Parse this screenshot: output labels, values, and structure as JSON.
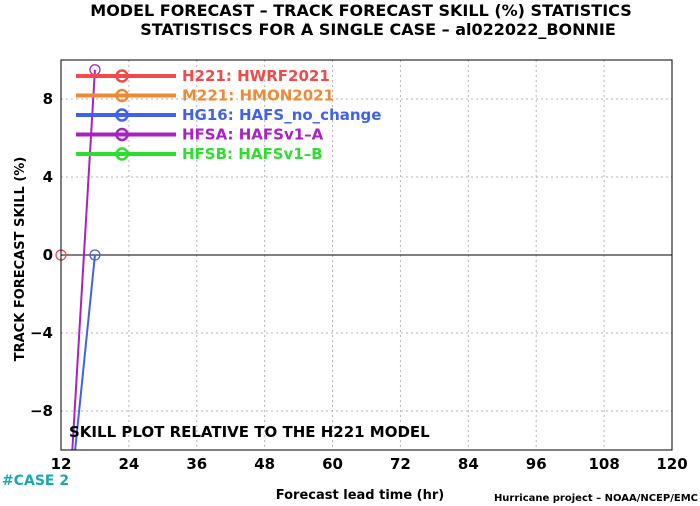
{
  "chart_data": {
    "type": "line",
    "title": "MODEL FORECAST – TRACK FORECAST SKILL (%) STATISTICS",
    "subtitle": "STATISTISCS FOR A SINGLE CASE – al022022_BONNIE",
    "xlabel": "Forecast lead time (hr)",
    "ylabel": "TRACK FORECAST SKILL (%)",
    "xlim": [
      12,
      120
    ],
    "ylim": [
      -10,
      10
    ],
    "xticks": [
      "12",
      "24",
      "36",
      "48",
      "60",
      "72",
      "84",
      "96",
      "108",
      "120"
    ],
    "yticks": [
      "8",
      "4",
      "0",
      "−4",
      "−8"
    ],
    "grid": true,
    "legend_position": "top-left",
    "annotation": "SKILL PLOT RELATIVE TO THE H221 MODEL",
    "case_label": "#CASE  2",
    "credit": "Hurricane project – NOAA/NCEP/EMC",
    "series": [
      {
        "code": "H221",
        "name": "HWRF2021",
        "color": "#f24a4a",
        "points": [
          [
            12,
            0
          ]
        ]
      },
      {
        "code": "M221",
        "name": "HMON2021",
        "color": "#ef8a34",
        "points": []
      },
      {
        "code": "HG16",
        "name": "HAFS_no_change",
        "color": "#3f62e8",
        "points": [
          [
            18,
            0
          ],
          [
            14.5,
            -10
          ]
        ]
      },
      {
        "code": "HFSA",
        "name": "HAFSv1–A",
        "color": "#a822c2",
        "points": [
          [
            18,
            9.5
          ],
          [
            14,
            -10
          ]
        ]
      },
      {
        "code": "HFSB",
        "name": "HAFSv1–B",
        "color": "#2ede2e",
        "points": []
      }
    ]
  }
}
